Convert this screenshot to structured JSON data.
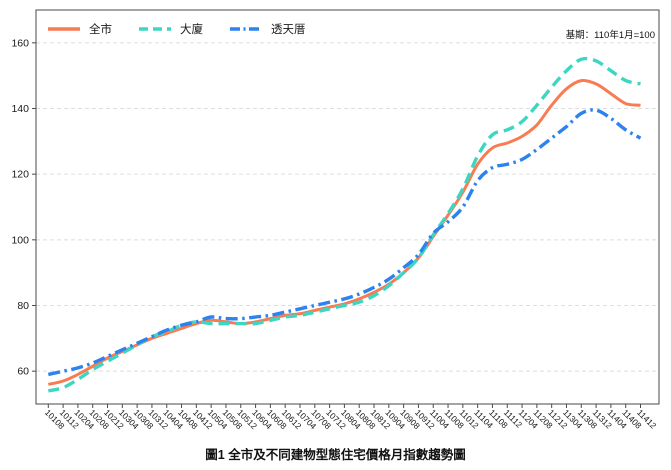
{
  "chart_data": {
    "type": "line",
    "title": "圖1 全市及不同建物型態住宅價格月指數趨勢圖",
    "annotation": "基期：110年1月=100",
    "legend_position": "top-left-inside",
    "grid": "horizontal-dashed",
    "grid_color": "#dedede",
    "axis_color": "#4a4a4a",
    "tick_label_color": "#1a1a1a",
    "ylim": [
      50,
      170
    ],
    "yticks": [
      60,
      80,
      100,
      120,
      140,
      160
    ],
    "x_tick_labels": [
      "10108",
      "10112",
      "10204",
      "10208",
      "10212",
      "10304",
      "10308",
      "10312",
      "10404",
      "10408",
      "10412",
      "10504",
      "10508",
      "10512",
      "10604",
      "10608",
      "10612",
      "10704",
      "10708",
      "10712",
      "10804",
      "10808",
      "10812",
      "10904",
      "10908",
      "10912",
      "11004",
      "11008",
      "11012",
      "11104",
      "11108",
      "11112",
      "11204",
      "11208",
      "11212",
      "11304",
      "11308",
      "11312",
      "11404",
      "11408",
      "11412"
    ],
    "series": [
      {
        "name": "全市",
        "style": "solid",
        "color": "#F87B51",
        "values": [
          56,
          57,
          59,
          61.5,
          64,
          66,
          68,
          70,
          71.5,
          73,
          74.5,
          75.5,
          75,
          74.5,
          75,
          76,
          77,
          77.5,
          78.5,
          79.5,
          80.5,
          82,
          84,
          86.5,
          90,
          94.5,
          101,
          107.5,
          114.5,
          123,
          128,
          129.5,
          131.5,
          135,
          141,
          146,
          148.5,
          147.5,
          144.5,
          141.5,
          141
        ]
      },
      {
        "name": "大廈",
        "style": "dashed",
        "color": "#3CD6C3",
        "values": [
          54,
          55,
          57.5,
          60.5,
          63,
          65.5,
          68,
          70.5,
          72,
          74,
          75,
          74.5,
          74.5,
          74.5,
          74.5,
          75.5,
          76.5,
          77,
          78,
          79,
          80,
          81,
          83,
          86,
          90,
          94.5,
          101.5,
          108,
          115.5,
          125.5,
          132,
          133.5,
          136,
          141,
          146.5,
          151.5,
          155,
          154.5,
          151.5,
          148.5,
          147.5
        ]
      },
      {
        "name": "透天厝",
        "style": "dashdot",
        "color": "#2C82EF",
        "values": [
          59,
          60,
          61,
          62.5,
          64.5,
          66.5,
          68.5,
          70.5,
          72.5,
          74,
          75,
          76.5,
          76,
          76,
          76.5,
          77,
          78,
          79,
          80,
          81,
          82,
          83.5,
          85.5,
          88,
          91.5,
          95.5,
          102,
          105.5,
          110,
          118,
          122,
          123,
          124.5,
          127.5,
          131,
          134.5,
          138.5,
          139.5,
          137,
          133.5,
          131
        ]
      }
    ]
  }
}
